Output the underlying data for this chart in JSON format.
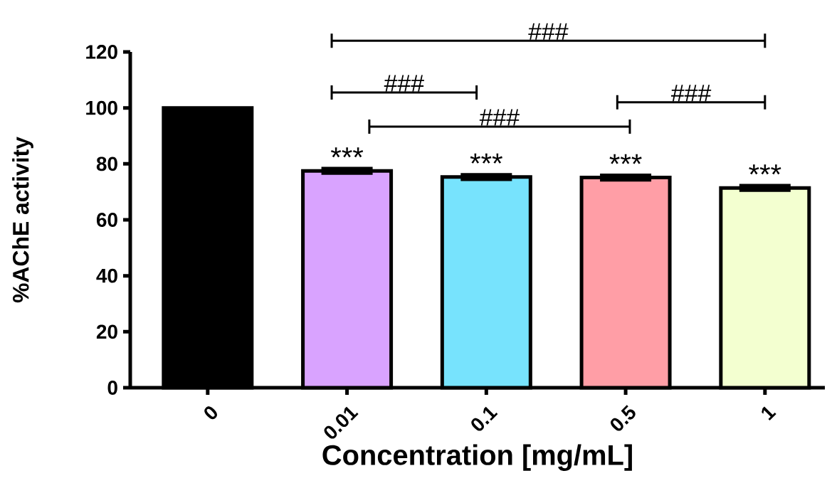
{
  "chart_data": {
    "type": "bar",
    "xlabel": "Concentration [mg/mL]",
    "ylabel": "%AChE activity",
    "categories": [
      "0",
      "0.01",
      "0.1",
      "0.5",
      "1"
    ],
    "values": [
      100,
      77.5,
      75.3,
      75.1,
      71.4
    ],
    "errors": [
      null,
      0.8,
      0.8,
      0.8,
      0.8
    ],
    "colors": [
      "#000000",
      "#d9a3ff",
      "#77e3fd",
      "#ff9ea6",
      "#f3ffd0"
    ],
    "ylim": [
      0,
      120
    ],
    "yticks": [
      0,
      20,
      40,
      60,
      80,
      100,
      120
    ],
    "annotations": [
      {
        "text": "***",
        "x": "0.01",
        "y": 77.5
      },
      {
        "text": "***",
        "x": "0.1",
        "y": 75.3
      },
      {
        "text": "***",
        "x": "0.5",
        "y": 75.1
      },
      {
        "text": "***",
        "x": "1",
        "y": 71.4
      },
      "###",
      "###",
      "###",
      "###"
    ]
  }
}
